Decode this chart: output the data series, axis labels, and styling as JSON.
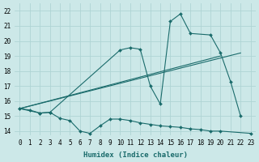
{
  "xlabel": "Humidex (Indice chaleur)",
  "xlim": [
    -0.5,
    23.5
  ],
  "ylim": [
    13.7,
    22.5
  ],
  "xticks": [
    0,
    1,
    2,
    3,
    4,
    5,
    6,
    7,
    8,
    9,
    10,
    11,
    12,
    13,
    14,
    15,
    16,
    17,
    18,
    19,
    20,
    21,
    22,
    23
  ],
  "yticks": [
    14,
    15,
    16,
    17,
    18,
    19,
    20,
    21,
    22
  ],
  "bg_color": "#cce8e8",
  "grid_color": "#afd4d4",
  "line_color": "#1a6b6b",
  "line1_x": [
    0,
    1,
    2,
    3,
    4,
    5,
    6,
    7,
    8,
    9,
    10,
    11,
    12,
    13,
    14,
    15,
    16,
    17,
    18,
    19,
    20,
    23
  ],
  "line1_y": [
    15.5,
    15.4,
    15.2,
    15.25,
    14.85,
    14.7,
    14.0,
    13.85,
    14.35,
    14.8,
    14.8,
    14.7,
    14.55,
    14.45,
    14.35,
    14.3,
    14.25,
    14.15,
    14.1,
    14.0,
    14.0,
    13.85
  ],
  "line2_x": [
    0,
    2,
    3,
    10,
    11,
    12,
    13,
    14,
    15,
    16,
    17,
    19,
    20,
    21,
    22
  ],
  "line2_y": [
    15.5,
    15.2,
    15.25,
    19.4,
    19.55,
    19.45,
    17.0,
    15.8,
    21.3,
    21.8,
    20.5,
    20.4,
    19.2,
    17.3,
    15.0
  ],
  "line3_x": [
    0,
    22
  ],
  "line3_y": [
    15.5,
    19.2
  ],
  "line4_x": [
    0,
    20
  ],
  "line4_y": [
    15.5,
    19.0
  ]
}
